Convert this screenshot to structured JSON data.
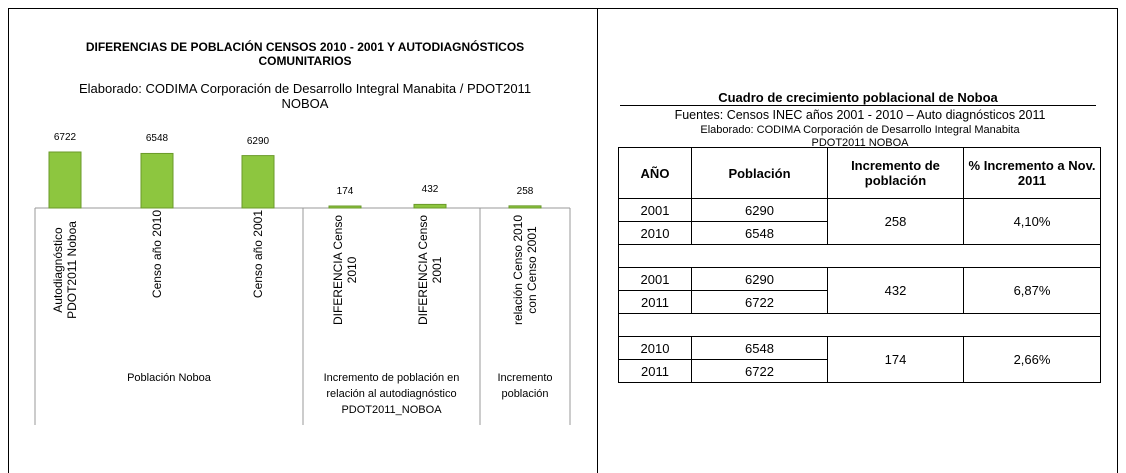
{
  "chart_data": {
    "type": "bar",
    "title": "DIFERENCIAS DE POBLACIÓN CENSOS 2010 - 2001 Y AUTODIAGNÓSTICOS COMUNITARIOS",
    "subtitle": "Elaborado: CODIMA Corporación de Desarrollo Integral Manabita / PDOT2011 NOBOA",
    "categories": [
      "Autodiagnóstico PDOT2011 Noboa",
      "Censo año 2010",
      "Censo año 2001",
      "DIFERENCIA Censo 2010",
      "DIFERENCIA Censo 2001",
      "relación Censo 2010 con Censo 2001"
    ],
    "values": [
      6722,
      6548,
      6290,
      174,
      432,
      258
    ],
    "groups": [
      {
        "name": "Población Noboa",
        "count": 3
      },
      {
        "name": "Incremento de población en relación al autodiagnóstico PDOT2011_NOBOA",
        "count": 2
      },
      {
        "name": "Incremento población",
        "count": 1
      }
    ],
    "color": "#8dc63f"
  },
  "table": {
    "title": "Cuadro de crecimiento poblacional de Noboa",
    "sources": [
      "Fuentes: Censos INEC años 2001 - 2010 – Auto diagnósticos 2011",
      "Elaborado: CODIMA Corporación de Desarrollo Integral Manabita",
      "PDOT2011 NOBOA"
    ],
    "headers": [
      "AÑO",
      "Población",
      "Incremento de población",
      "% Incremento a Nov. 2011"
    ],
    "groups": [
      {
        "rows": [
          [
            2001,
            6290
          ],
          [
            2010,
            6548
          ]
        ],
        "increment": 258,
        "percent": "4,10%"
      },
      {
        "rows": [
          [
            2001,
            6290
          ],
          [
            2011,
            6722
          ]
        ],
        "increment": 432,
        "percent": "6,87%"
      },
      {
        "rows": [
          [
            2010,
            6548
          ],
          [
            2011,
            6722
          ]
        ],
        "increment": 174,
        "percent": "2,66%"
      }
    ]
  }
}
